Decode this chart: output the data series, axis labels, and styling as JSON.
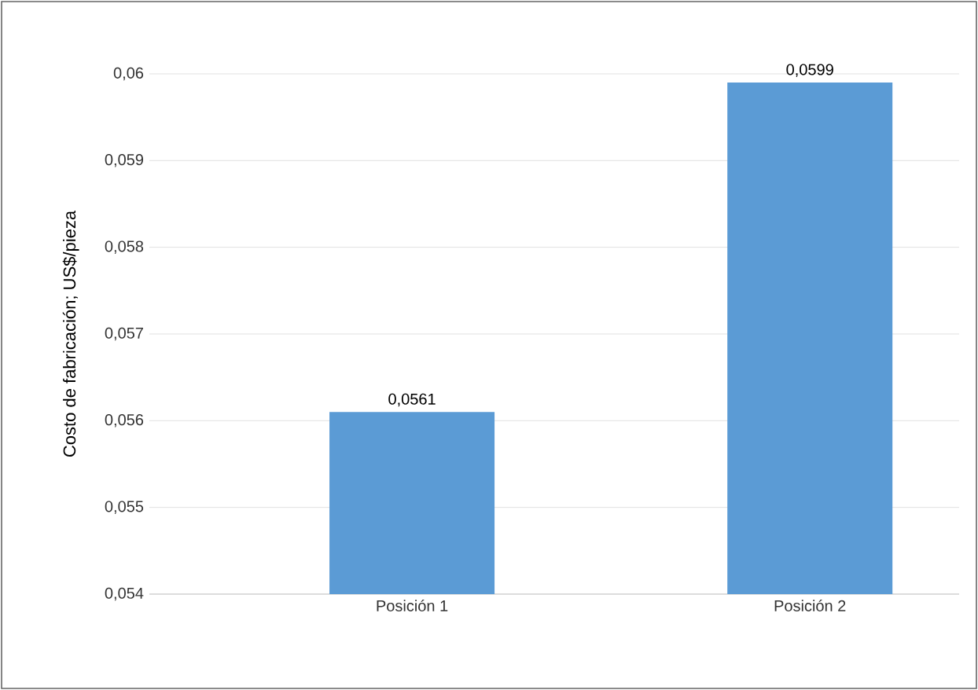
{
  "chart_data": {
    "type": "bar",
    "ylabel": "Costo de fabricación; US$/pieza",
    "categories": [
      "Posición 1",
      "Posición 2"
    ],
    "values": [
      0.0561,
      0.0599
    ],
    "color": "#5b9bd5",
    "value_labels": [
      "0,0561",
      "0,0599"
    ],
    "ylim": [
      0.054,
      0.06
    ],
    "yticks": [
      {
        "value": 0.054,
        "label": "0,054"
      },
      {
        "value": 0.055,
        "label": "0,055"
      },
      {
        "value": 0.056,
        "label": "0,056"
      },
      {
        "value": 0.057,
        "label": "0,057"
      },
      {
        "value": 0.058,
        "label": "0,058"
      },
      {
        "value": 0.059,
        "label": "0,059"
      },
      {
        "value": 0.06,
        "label": "0,06"
      }
    ],
    "grid": "y"
  }
}
